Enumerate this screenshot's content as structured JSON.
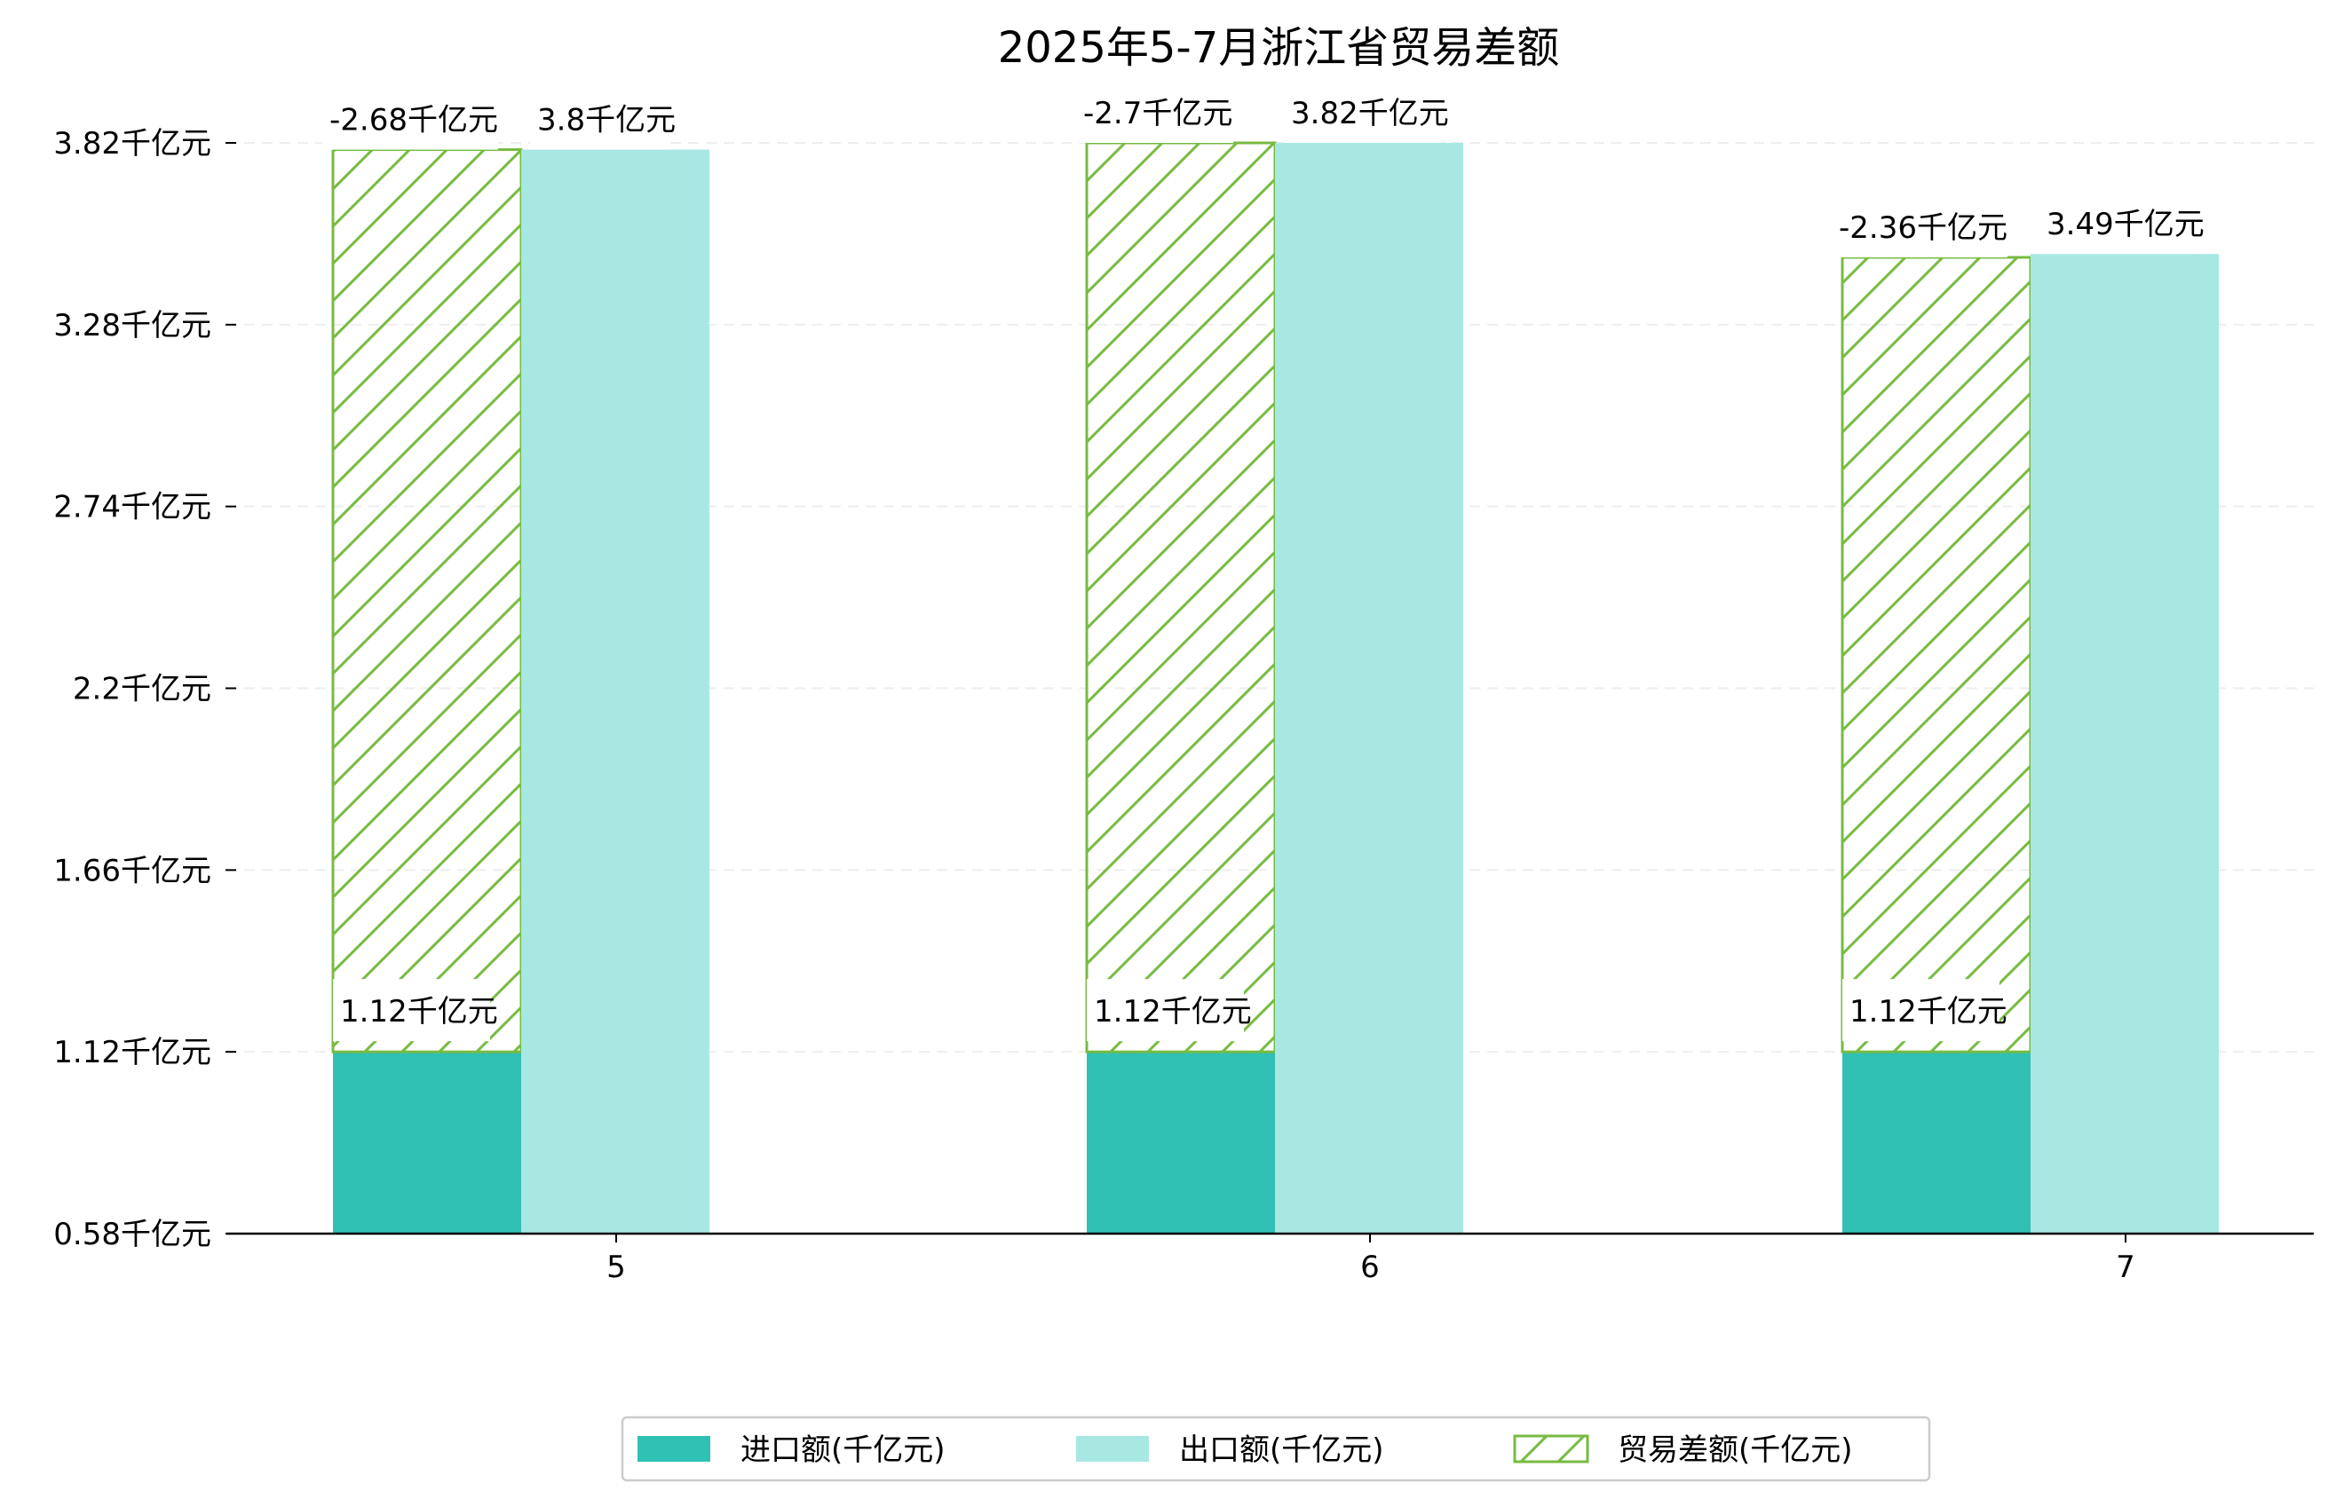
{
  "chart_data": {
    "type": "bar",
    "title": "2025年5-7月浙江省贸易差额",
    "xlabel": "",
    "ylabel": "",
    "categories": [
      "5",
      "6",
      "7"
    ],
    "unit_suffix": "千亿元",
    "series": [
      {
        "name": "进口额(千亿元)",
        "values": [
          1.12,
          1.12,
          1.12
        ],
        "color": "#30c0b4",
        "style": "solid"
      },
      {
        "name": "出口额(千亿元)",
        "values": [
          3.8,
          3.82,
          3.49
        ],
        "color": "#a8e8e2",
        "style": "solid"
      },
      {
        "name": "贸易差额(千亿元)",
        "values": [
          -2.68,
          -2.7,
          -2.36
        ],
        "color": "#77bb41",
        "style": "hatched"
      }
    ],
    "yticks": [
      0.58,
      1.12,
      1.66,
      2.2,
      2.74,
      3.28,
      3.82
    ],
    "ytick_labels": [
      "0.58千亿元",
      "1.12千亿元",
      "1.66千亿元",
      "2.2千亿元",
      "2.74千亿元",
      "3.28千亿元",
      "3.82千亿元"
    ],
    "ylim": [
      0.58,
      3.82
    ],
    "grid": true,
    "legend_position": "bottom-center"
  }
}
